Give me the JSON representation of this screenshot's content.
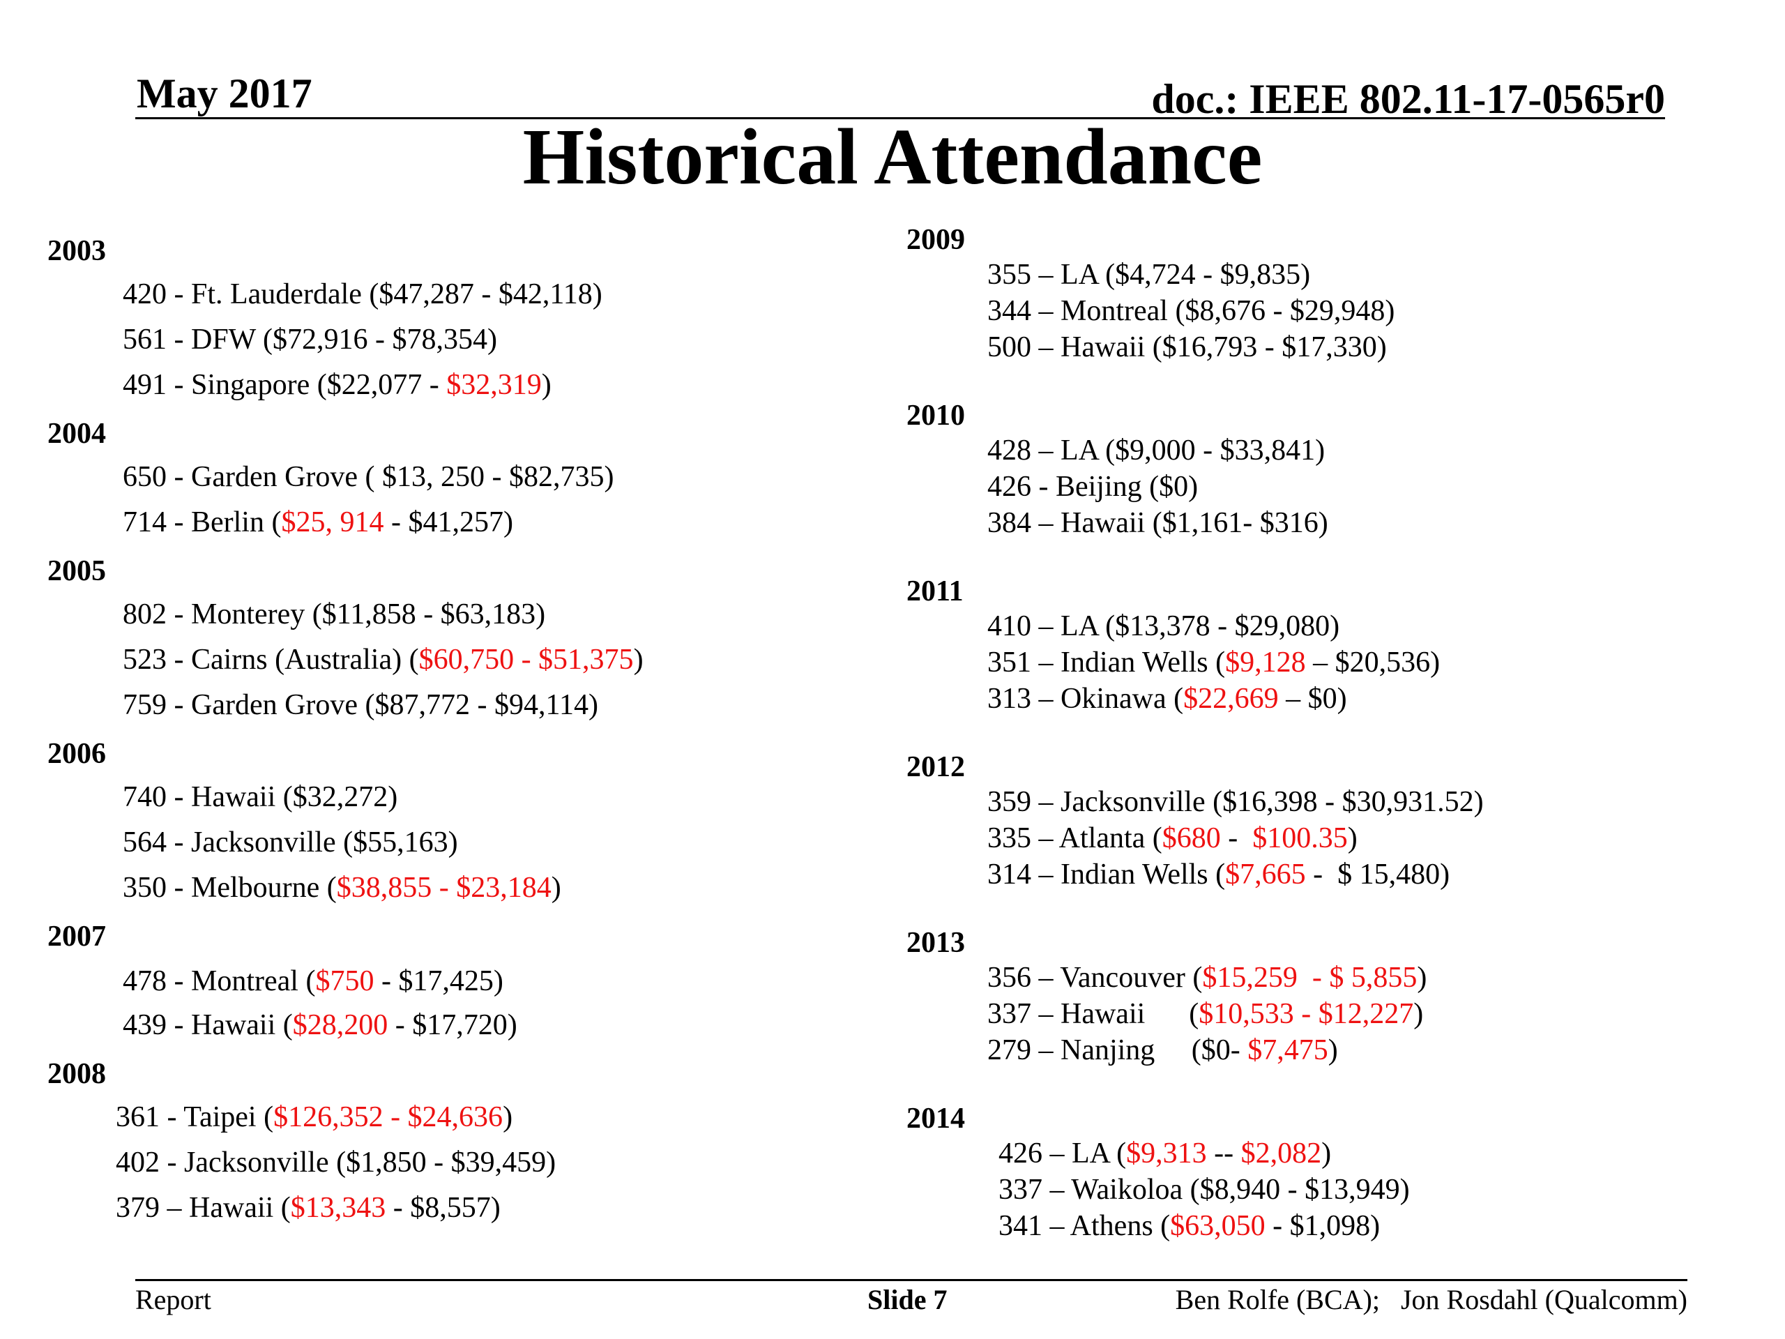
{
  "header": {
    "date": "May 2017",
    "doc": "doc.: IEEE 802.11-17-0565r0"
  },
  "title": "Historical Attendance",
  "colors": {
    "highlight": "#ee1111",
    "text": "#000000"
  },
  "left": {
    "y2003": {
      "year": "2003",
      "entries": [
        [
          "420 - Ft. Lauderdale ($47,287 - $42,118)"
        ],
        [
          "561 - DFW ($72,916 - $78,354)"
        ],
        [
          "491 - Singapore ($22,077 - ",
          "$32,319",
          ")"
        ]
      ]
    },
    "y2004": {
      "year": "2004",
      "entries": [
        [
          "650 - Garden Grove ( $13, 250 - $82,735)"
        ],
        [
          "714 - Berlin (",
          "$25, 914",
          " - $41,257)"
        ]
      ]
    },
    "y2005": {
      "year": "2005",
      "entries": [
        [
          "802 - Monterey ($11,858 - $63,183)"
        ],
        [
          "523 - Cairns (Australia) (",
          "$60,750 - $51,375",
          ")"
        ],
        [
          "759 - Garden Grove ($87,772 - $94,114)"
        ]
      ]
    },
    "y2006": {
      "year": "2006",
      "entries": [
        [
          "740 - Hawaii ($32,272)"
        ],
        [
          "564 - Jacksonville ($55,163)"
        ],
        [
          "350 - Melbourne (",
          "$38,855 - $23,184",
          ")"
        ]
      ]
    },
    "y2007": {
      "year": "2007",
      "entries": [
        [
          "478 - Montreal (",
          "$750",
          " - $17,425)"
        ],
        [
          "439 - Hawaii (",
          "$28,200",
          " - $17,720)"
        ]
      ]
    },
    "y2008": {
      "year": "2008",
      "entries": [
        [
          "361 - Taipei (",
          "$126,352 - $24,636",
          ")"
        ],
        [
          "402 - Jacksonville ($1,850 - $39,459)"
        ],
        [
          "379 – Hawaii (",
          "$13,343",
          " - $8,557)"
        ]
      ]
    }
  },
  "right": {
    "y2009": {
      "year": "2009",
      "entries": [
        [
          "355 – LA ($4,724 - $9,835)"
        ],
        [
          "344 – Montreal ($8,676 - $29,948)"
        ],
        [
          "500 – Hawaii ($16,793 - $17,330)"
        ]
      ]
    },
    "y2010": {
      "year": "2010",
      "entries": [
        [
          "428 – LA ($9,000 - $33,841)"
        ],
        [
          "426 - Beijing ($0)"
        ],
        [
          "384 – Hawaii ($1,161- $316)"
        ]
      ]
    },
    "y2011": {
      "year": "2011",
      "entries": [
        [
          "410 – LA ($13,378 - $29,080)"
        ],
        [
          "351 – Indian Wells (",
          "$9,128",
          " – $20,536)"
        ],
        [
          "313 – Okinawa (",
          "$22,669",
          " – $0)"
        ]
      ]
    },
    "y2012": {
      "year": "2012",
      "entries": [
        [
          "359 – Jacksonville ($16,398 - $30,931.52)"
        ],
        [
          "335 – Atlanta (",
          "$680",
          " -  ",
          "$100.35",
          ")"
        ],
        [
          "314 – Indian Wells (",
          "$7,665",
          " -  $ 15,480)"
        ]
      ]
    },
    "y2013": {
      "year": "2013",
      "entries": [
        [
          "356 – Vancouver (",
          "$15,259  - $ 5,855",
          ")"
        ],
        [
          "337 – Hawaii      (",
          "$10,533 - $12,227",
          ")"
        ],
        [
          "279 – Nanjing     ($0- ",
          "$7,475",
          ")"
        ]
      ]
    },
    "y2014": {
      "year": "2014",
      "entries": [
        [
          "426 – LA (",
          "$9,313",
          " -- ",
          "$2,082",
          ")"
        ],
        [
          "337 – Waikoloa ($8,940 - $13,949)"
        ],
        [
          "341 – Athens (",
          "$63,050",
          " - $1,098)"
        ]
      ]
    }
  },
  "footer": {
    "left": "Report",
    "center": "Slide 7",
    "right": "Ben Rolfe (BCA);   Jon Rosdahl (Qualcomm)"
  }
}
